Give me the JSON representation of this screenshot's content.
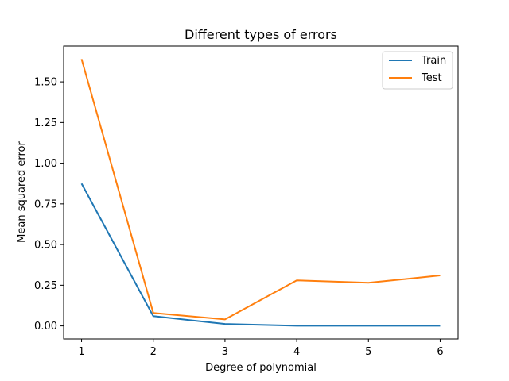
{
  "chart_data": {
    "type": "line",
    "title": "Different types of errors",
    "xlabel": "Degree of polynomial",
    "ylabel": "Mean squared error",
    "x": [
      1,
      2,
      3,
      4,
      5,
      6
    ],
    "x_ticks": [
      "1",
      "2",
      "3",
      "4",
      "5",
      "6"
    ],
    "y_ticks": [
      "0.00",
      "0.25",
      "0.50",
      "0.75",
      "1.00",
      "1.25",
      "1.50"
    ],
    "xlim": [
      0.75,
      6.25
    ],
    "ylim": [
      -0.08,
      1.72
    ],
    "grid": false,
    "legend_position": "top-right",
    "series": [
      {
        "name": "Train",
        "color": "#1f77b4",
        "values": [
          0.875,
          0.06,
          0.012,
          0.001,
          0.001,
          0.001
        ]
      },
      {
        "name": "Test",
        "color": "#ff7f0e",
        "values": [
          1.64,
          0.08,
          0.04,
          0.28,
          0.265,
          0.31
        ]
      }
    ]
  }
}
